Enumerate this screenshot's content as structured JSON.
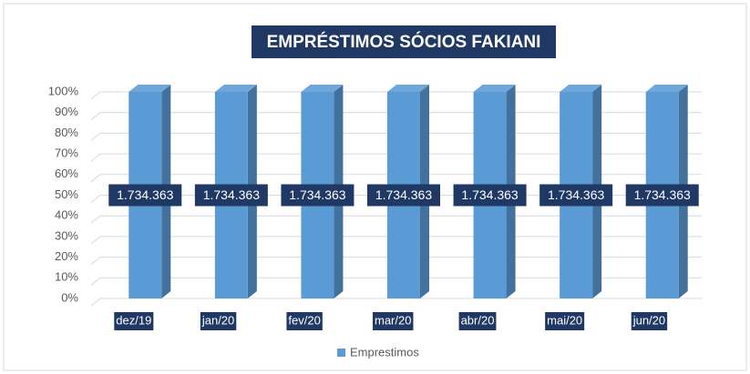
{
  "chart_data": {
    "type": "stacked_bar_100",
    "title": "EMPRÉSTIMOS SÓCIOS FAKIANI",
    "categories": [
      "dez/19",
      "jan/20",
      "fev/20",
      "mar/20",
      "abr/20",
      "mai/20",
      "jun/20"
    ],
    "series": [
      {
        "name": "Emprestimos",
        "color": "#5b9bd5",
        "values": [
          1734363,
          1734363,
          1734363,
          1734363,
          1734363,
          1734363,
          1734363
        ],
        "value_labels": [
          "1.734.363",
          "1.734.363",
          "1.734.363",
          "1.734.363",
          "1.734.363",
          "1.734.363",
          "1.734.363"
        ]
      }
    ],
    "ylim": [
      0,
      100
    ],
    "yticks": [
      {
        "value": 0,
        "label": "0%"
      },
      {
        "value": 10,
        "label": "10%"
      },
      {
        "value": 20,
        "label": "20%"
      },
      {
        "value": 30,
        "label": "30%"
      },
      {
        "value": 40,
        "label": "40%"
      },
      {
        "value": 50,
        "label": "50%"
      },
      {
        "value": 60,
        "label": "60%"
      },
      {
        "value": 70,
        "label": "70%"
      },
      {
        "value": 80,
        "label": "80%"
      },
      {
        "value": 90,
        "label": "90%"
      },
      {
        "value": 100,
        "label": "100%"
      }
    ],
    "grid": true,
    "legend": "bottom"
  }
}
